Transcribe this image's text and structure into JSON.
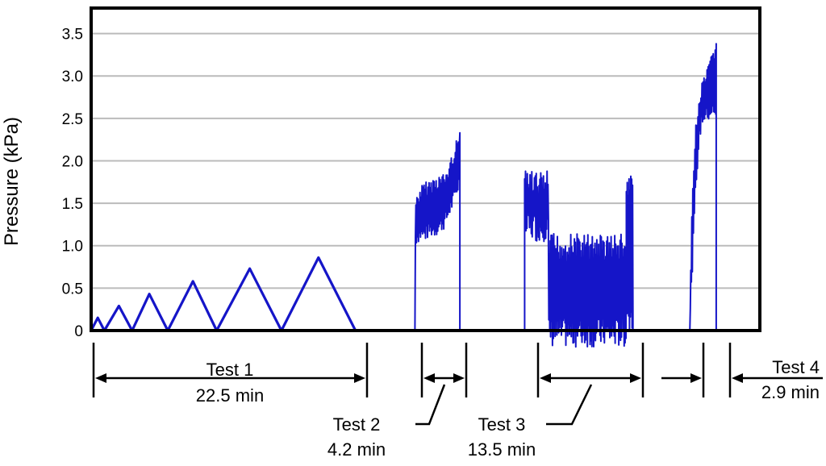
{
  "chart_data": {
    "type": "line",
    "ylabel": "Pressure (kPa)",
    "ylim": [
      0,
      3.8
    ],
    "yticks": [
      {
        "value": 0,
        "label": "0"
      },
      {
        "value": 0.5,
        "label": "0.5"
      },
      {
        "value": 1.0,
        "label": "1.0"
      },
      {
        "value": 1.5,
        "label": "1.5"
      },
      {
        "value": 2.0,
        "label": "2.0"
      },
      {
        "value": 2.5,
        "label": "2.5"
      },
      {
        "value": 3.0,
        "label": "3.0"
      },
      {
        "value": 3.5,
        "label": "3.5"
      }
    ],
    "grid": true,
    "colors": {
      "series": "#1515c8",
      "grid": "#bbbbbb",
      "axes": "#000000"
    },
    "series": [
      {
        "test": "Test 1",
        "kind": "triangles",
        "x": [
          0,
          0.5,
          1.0,
          2.1,
          3.1,
          4.4,
          5.8,
          7.7,
          9.5,
          12.0,
          14.4,
          17.2,
          20.0
        ],
        "y": [
          0,
          0.15,
          0,
          0.29,
          0,
          0.43,
          0,
          0.58,
          0,
          0.73,
          0,
          0.86,
          0
        ]
      },
      {
        "test": "Test 2",
        "kind": "noisy",
        "x_start": 24.5,
        "x_end": 27.9,
        "low": [
          1.0,
          1.05,
          1.05,
          1.1,
          1.1,
          1.15,
          1.2,
          1.35,
          1.5,
          1.7
        ],
        "high": [
          1.55,
          1.7,
          1.75,
          1.78,
          1.82,
          1.85,
          1.85,
          2.0,
          2.2,
          2.33
        ]
      },
      {
        "test": "Test 3",
        "kind": "noisy_stepped",
        "segments": [
          {
            "x_start": 32.8,
            "x_end": 34.6,
            "low": 1.05,
            "high": 1.88
          },
          {
            "x_start": 34.6,
            "x_end": 40.5,
            "low": -0.2,
            "high": 1.15
          },
          {
            "x_start": 40.5,
            "x_end": 41.0,
            "low": 0.0,
            "high": 1.82
          }
        ]
      },
      {
        "test": "Test 4",
        "kind": "noisy",
        "x_start": 45.3,
        "x_end": 47.3,
        "low": [
          0.0,
          0.8,
          1.6,
          2.1,
          2.4,
          2.45,
          2.45,
          2.5,
          2.5,
          2.4
        ],
        "high": [
          0.4,
          1.8,
          2.4,
          2.7,
          2.9,
          3.0,
          3.1,
          3.2,
          3.35,
          3.38
        ]
      }
    ],
    "annotations": {
      "test1": {
        "name": "Test 1",
        "duration": "22.5 min"
      },
      "test2": {
        "name": "Test 2",
        "duration": "4.2 min"
      },
      "test3": {
        "name": "Test 3",
        "duration": "13.5 min"
      },
      "test4": {
        "name": "Test 4",
        "duration": "2.9 min"
      }
    }
  }
}
